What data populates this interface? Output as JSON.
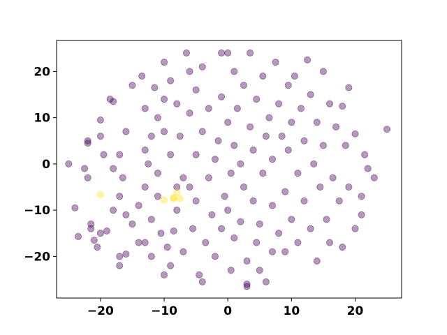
{
  "chart_data": {
    "type": "scatter",
    "xlim": [
      -26.9,
      27.3
    ],
    "ylim": [
      -29.0,
      26.7
    ],
    "xticks": [
      {
        "value": -20,
        "label": "−20"
      },
      {
        "value": -10,
        "label": "−10"
      },
      0,
      10,
      20
    ],
    "yticks": [
      {
        "value": -20,
        "label": "−20"
      },
      {
        "value": -10,
        "label": "−10"
      },
      0,
      10,
      20
    ],
    "series": [
      {
        "color": "#440154",
        "x": [
          -25,
          -24,
          -23.5,
          -22.5,
          -22,
          -22,
          -22,
          -21.5,
          -21,
          -21.5,
          -20.5,
          -20,
          -20,
          -20,
          -19.5,
          -19,
          -18.5,
          -18,
          -18,
          -18,
          -17,
          -17,
          -17,
          -17,
          -16.5,
          -16,
          -16,
          -16,
          -15,
          -15,
          -14,
          -14,
          -13.5,
          -13,
          -13,
          -13,
          -13,
          -12.5,
          -12,
          -12,
          -12,
          -11.5,
          -11,
          -11,
          -11,
          -10.5,
          -10,
          -10,
          -10,
          -10,
          -9.5,
          -9,
          -9,
          -9,
          -8.5,
          -8,
          -8,
          -7.5,
          -7,
          -7,
          -6.5,
          -6,
          -6,
          -6,
          -5.5,
          -5,
          -5,
          -5,
          -4.5,
          -4,
          -4,
          -4,
          -3.5,
          -3,
          -3,
          -2.5,
          -2,
          -2,
          -1.5,
          -1,
          -1,
          -1,
          -0.5,
          0,
          0,
          0.5,
          0.5,
          1,
          1,
          1,
          1.5,
          2,
          2,
          2.5,
          2.5,
          3,
          3,
          3.5,
          3.5,
          4,
          4,
          4.5,
          4.5,
          5,
          5,
          5.5,
          5.5,
          6,
          6,
          6.5,
          7,
          7,
          7,
          7.5,
          8,
          8,
          8.5,
          9,
          9,
          9.5,
          9.5,
          10,
          10,
          10.5,
          11,
          11,
          11.5,
          12,
          12,
          12.5,
          13,
          13,
          13.5,
          14,
          14,
          14.5,
          15,
          15,
          15.5,
          16,
          16,
          16.5,
          17,
          17.5,
          18,
          18,
          18.5,
          19,
          19,
          20,
          20,
          21,
          21,
          21.5,
          22,
          23,
          25,
          3,
          0,
          -8
        ],
        "y": [
          0,
          -9.5,
          -15.7,
          -1,
          -3,
          5,
          4.5,
          -13,
          -16.5,
          -14,
          -18,
          -15,
          9.5,
          6,
          2,
          -14.5,
          14,
          13.5,
          -1,
          -10,
          2,
          -7,
          -20,
          -22,
          -3,
          7,
          -19.5,
          -11,
          17,
          -13,
          -17,
          -9,
          19,
          3,
          -5,
          -17,
          12,
          0,
          6,
          -12,
          -20,
          16.5,
          10,
          -2,
          -7,
          -15,
          22,
          7,
          -24,
          14,
          -18,
          18,
          2,
          -22,
          -14.5,
          -10,
          13,
          6,
          -19,
          -3,
          24,
          20,
          11,
          -5,
          -14,
          -8,
          16,
          2,
          -24,
          -25.5,
          21,
          7,
          -17,
          -3,
          12,
          -11,
          1,
          -20,
          5,
          24,
          -14,
          14.5,
          -7,
          -10,
          9,
          -2,
          -23,
          20,
          -16,
          4,
          12,
          -12.5,
          0,
          17,
          -5,
          -26,
          -21,
          24,
          8,
          -8,
          3,
          -17,
          14,
          -23,
          -13,
          19,
          -2,
          6,
          -25.5,
          10,
          -9,
          -19,
          1,
          22,
          -15,
          13,
          6,
          -6,
          -19,
          3,
          17,
          -12,
          9,
          19,
          -2,
          -17,
          12,
          -8,
          5,
          22.5,
          -14,
          15,
          0,
          -21,
          9,
          -5,
          20,
          4,
          -12,
          -17,
          13,
          -3,
          8,
          -8,
          12.5,
          -18,
          4,
          16.5,
          -5,
          -14,
          6.5,
          -7,
          -11,
          2,
          -1,
          -3,
          7.5,
          -26.5,
          24,
          -5
        ]
      },
      {
        "color": "#fde725",
        "x": [
          -20,
          -10,
          -8.5,
          -8,
          -7.5,
          -8.5
        ],
        "y": [
          -6.7,
          -7.8,
          -7.3,
          -6.2,
          -7.5,
          -7.5
        ]
      }
    ]
  }
}
